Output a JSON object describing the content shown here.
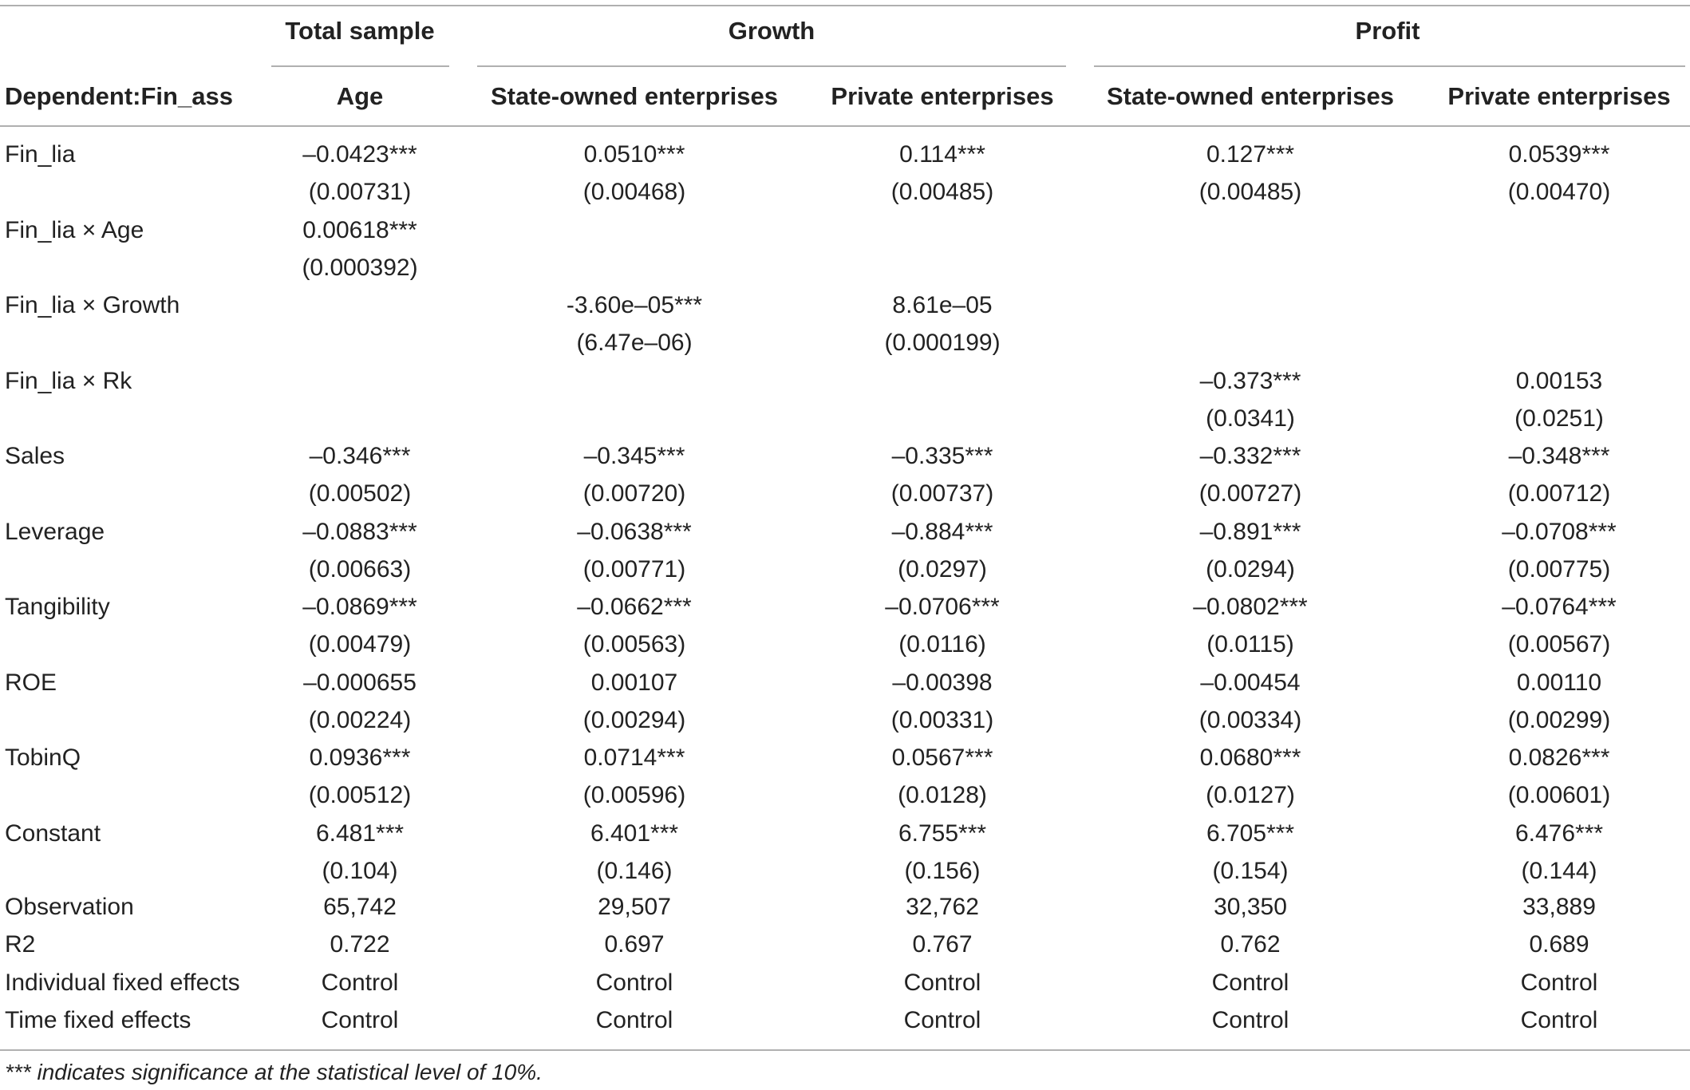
{
  "table": {
    "group_headers": [
      {
        "label": "Total sample"
      },
      {
        "label": "Growth"
      },
      {
        "label": "Profit"
      }
    ],
    "subheaders": [
      "Dependent:Fin_ass",
      "Age",
      "State-owned enterprises",
      "Private enterprises",
      "State-owned enterprises",
      "Private enterprises"
    ],
    "rows": [
      {
        "label": "Fin_lia",
        "cells": [
          [
            "–0.0423***",
            "(0.00731)"
          ],
          [
            "0.0510***",
            "(0.00468)"
          ],
          [
            "0.114***",
            "(0.00485)"
          ],
          [
            "0.127***",
            "(0.00485)"
          ],
          [
            "0.0539***",
            "(0.00470)"
          ]
        ]
      },
      {
        "label": "Fin_lia × Age",
        "cells": [
          [
            "0.00618***",
            "(0.000392)"
          ],
          [
            "",
            ""
          ],
          [
            "",
            ""
          ],
          [
            "",
            ""
          ],
          [
            "",
            ""
          ]
        ]
      },
      {
        "label": "Fin_lia × Growth",
        "cells": [
          [
            "",
            ""
          ],
          [
            "-3.60e–05***",
            "(6.47e–06)"
          ],
          [
            "8.61e–05",
            "(0.000199)"
          ],
          [
            "",
            ""
          ],
          [
            "",
            ""
          ]
        ]
      },
      {
        "label": "Fin_lia × Rk",
        "cells": [
          [
            "",
            ""
          ],
          [
            "",
            ""
          ],
          [
            "",
            ""
          ],
          [
            "–0.373***",
            "(0.0341)"
          ],
          [
            "0.00153",
            "(0.0251)"
          ]
        ]
      },
      {
        "label": "Sales",
        "cells": [
          [
            "–0.346***",
            "(0.00502)"
          ],
          [
            "–0.345***",
            "(0.00720)"
          ],
          [
            "–0.335***",
            "(0.00737)"
          ],
          [
            "–0.332***",
            "(0.00727)"
          ],
          [
            "–0.348***",
            "(0.00712)"
          ]
        ]
      },
      {
        "label": "Leverage",
        "cells": [
          [
            "–0.0883***",
            "(0.00663)"
          ],
          [
            "–0.0638***",
            "(0.00771)"
          ],
          [
            "–0.884***",
            "(0.0297)"
          ],
          [
            "–0.891***",
            "(0.0294)"
          ],
          [
            "–0.0708***",
            "(0.00775)"
          ]
        ]
      },
      {
        "label": "Tangibility",
        "cells": [
          [
            "–0.0869***",
            "(0.00479)"
          ],
          [
            "–0.0662***",
            "(0.00563)"
          ],
          [
            "–0.0706***",
            "(0.0116)"
          ],
          [
            "–0.0802***",
            "(0.0115)"
          ],
          [
            "–0.0764***",
            "(0.00567)"
          ]
        ]
      },
      {
        "label": "ROE",
        "cells": [
          [
            "–0.000655",
            "(0.00224)"
          ],
          [
            "0.00107",
            "(0.00294)"
          ],
          [
            "–0.00398",
            "(0.00331)"
          ],
          [
            "–0.00454",
            "(0.00334)"
          ],
          [
            "0.00110",
            "(0.00299)"
          ]
        ]
      },
      {
        "label": "TobinQ",
        "cells": [
          [
            "0.0936***",
            "(0.00512)"
          ],
          [
            "0.0714***",
            "(0.00596)"
          ],
          [
            "0.0567***",
            "(0.0128)"
          ],
          [
            "0.0680***",
            "(0.0127)"
          ],
          [
            "0.0826***",
            "(0.00601)"
          ]
        ]
      },
      {
        "label": "Constant",
        "cells": [
          [
            "6.481***",
            "(0.104)"
          ],
          [
            "6.401***",
            "(0.146)"
          ],
          [
            "6.755***",
            "(0.156)"
          ],
          [
            "6.705***",
            "(0.154)"
          ],
          [
            "6.476***",
            "(0.144)"
          ]
        ]
      }
    ],
    "summary_rows": [
      {
        "label": "Observation",
        "cells": [
          "65,742",
          "29,507",
          "32,762",
          "30,350",
          "33,889"
        ]
      },
      {
        "label": "R2",
        "cells": [
          "0.722",
          "0.697",
          "0.767",
          "0.762",
          "0.689"
        ]
      },
      {
        "label": "Individual fixed effects",
        "cells": [
          "Control",
          "Control",
          "Control",
          "Control",
          "Control"
        ]
      },
      {
        "label": "Time fixed effects",
        "cells": [
          "Control",
          "Control",
          "Control",
          "Control",
          "Control"
        ]
      }
    ],
    "footnote": "*** indicates significance at the statistical level of 10%."
  }
}
